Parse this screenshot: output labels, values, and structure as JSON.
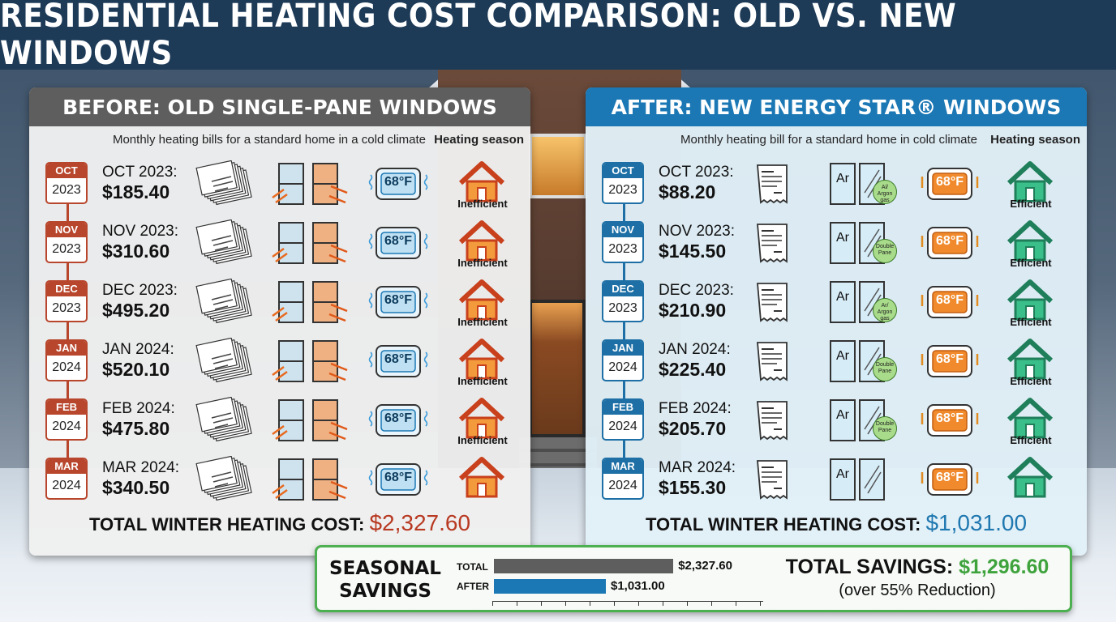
{
  "title": "RESIDENTIAL HEATING COST COMPARISON: OLD VS. NEW WINDOWS",
  "colors": {
    "old_accent": "#b8462c",
    "new_accent": "#1d6fa5",
    "savings_green": "#3fa33d",
    "title_bg": "#1d3a57"
  },
  "before": {
    "heading": "BEFORE: OLD SINGLE-PANE WINDOWS",
    "subtitle": "Monthly heating bills for a standard home in a cold climate",
    "season": "Heating season",
    "total_label": "TOTAL WINTER HEATING COST:",
    "total_value": "$2,327.60",
    "rows": [
      {
        "month": "OCT",
        "year": "2023",
        "label": "OCT 2023:",
        "value": "$185.40",
        "thermo": "68°F",
        "status": "Inefficient"
      },
      {
        "month": "NOV",
        "year": "2023",
        "label": "NOV 2023:",
        "value": "$310.60",
        "thermo": "68°F",
        "status": "Inefficient"
      },
      {
        "month": "DEC",
        "year": "2023",
        "label": "DEC 2023:",
        "value": "$495.20",
        "thermo": "68°F",
        "status": "Inefficient"
      },
      {
        "month": "JAN",
        "year": "2024",
        "label": "JAN 2024:",
        "value": "$520.10",
        "thermo": "68°F",
        "status": "Inefficient"
      },
      {
        "month": "FEB",
        "year": "2024",
        "label": "FEB 2024:",
        "value": "$475.80",
        "thermo": "68°F",
        "status": "Inefficient"
      },
      {
        "month": "MAR",
        "year": "2024",
        "label": "MAR 2024:",
        "value": "$340.50",
        "thermo": "68°F",
        "status": ""
      }
    ]
  },
  "after": {
    "heading": "AFTER: NEW ENERGY STAR® WINDOWS",
    "subtitle": "Monthly heating bill for a standard home in cold climate",
    "season": "Heating season",
    "total_label": "TOTAL WINTER HEATING COST:",
    "total_value": "$1,031.00",
    "rows": [
      {
        "month": "OCT",
        "year": "2023",
        "label": "OCT 2023:",
        "value": "$88.20",
        "thermo": "68°F",
        "status": "Efficient",
        "window": "Ar",
        "badge": "Al/ Argon gas"
      },
      {
        "month": "NOV",
        "year": "2023",
        "label": "NOV 2023:",
        "value": "$145.50",
        "thermo": "68°F",
        "status": "Efficient",
        "window": "Ar",
        "badge": "Double Pane"
      },
      {
        "month": "DEC",
        "year": "2023",
        "label": "DEC 2023:",
        "value": "$210.90",
        "thermo": "68°F",
        "status": "Efficient",
        "window": "Ar",
        "badge": "Ar/ Argon gas"
      },
      {
        "month": "JAN",
        "year": "2024",
        "label": "JAN 2024:",
        "value": "$225.40",
        "thermo": "68°F",
        "status": "Efficient",
        "window": "Ar",
        "badge": "Double Pane"
      },
      {
        "month": "FEB",
        "year": "2024",
        "label": "FEB 2024:",
        "value": "$205.70",
        "thermo": "68°F",
        "status": "Efficient",
        "window": "Ar",
        "badge": "Double Pane"
      },
      {
        "month": "MAR",
        "year": "2024",
        "label": "MAR 2024:",
        "value": "$155.30",
        "thermo": "68°F",
        "status": "",
        "window": "Ar",
        "badge": ""
      }
    ]
  },
  "savings": {
    "title_line1": "SEASONAL",
    "title_line2": "SAVINGS",
    "bar_total_label": "TOTAL",
    "bar_after_label": "AFTER",
    "bar_total_value": "$2,327.60",
    "bar_after_value": "$1,031.00",
    "total_savings_label": "TOTAL SAVINGS:",
    "total_savings_value": "$1,296.60",
    "reduction": "(over 55% Reduction)"
  },
  "chart_data": {
    "type": "bar",
    "categories": [
      "TOTAL",
      "AFTER"
    ],
    "values": [
      2327.6,
      1031.0
    ],
    "title": "SEASONAL SAVINGS",
    "xlabel": "",
    "ylabel": ""
  }
}
